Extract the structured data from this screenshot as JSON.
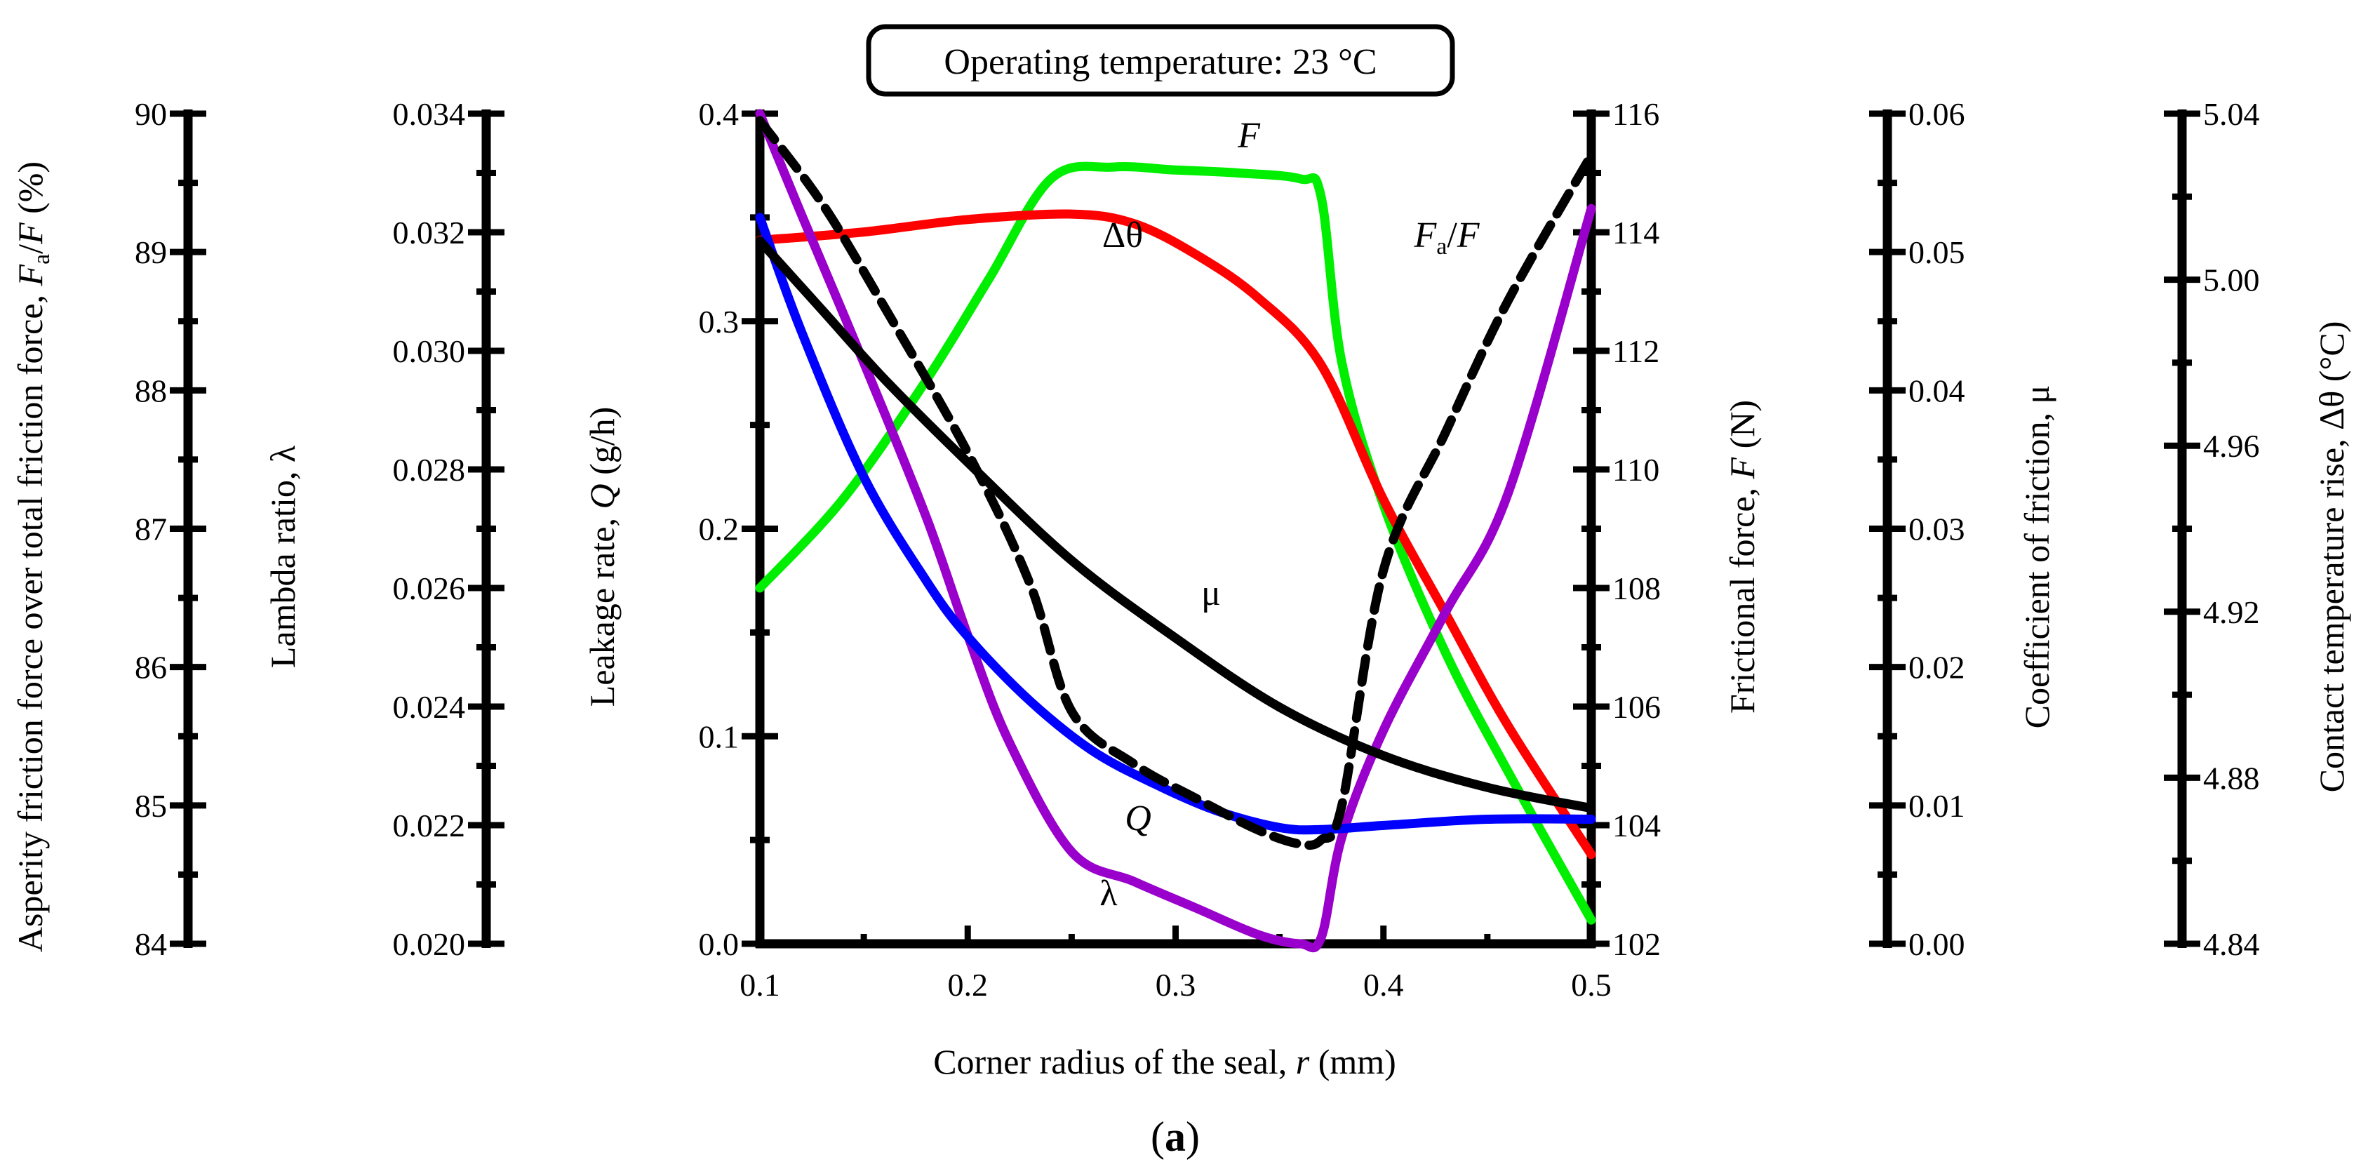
{
  "chart_data": {
    "type": "line",
    "title": "Operating temperature: 23 °C",
    "caption": {
      "open": "(",
      "letter": "a",
      "close": ")"
    },
    "xaxis": {
      "label": [
        "Corner radius of the seal, ",
        "r",
        " (mm)"
      ],
      "range": [
        0.1,
        0.5
      ],
      "ticks": [
        0.1,
        0.2,
        0.3,
        0.4,
        0.5
      ],
      "tick_labels": [
        "0.1",
        "0.2",
        "0.3",
        "0.4",
        "0.5"
      ]
    },
    "axes": {
      "asperity_ratio": {
        "label": [
          "Asperity friction force over total friction force, ",
          "F",
          "a",
          "/",
          "F",
          " (%)"
        ],
        "range": [
          84,
          90
        ],
        "ticks": [
          84,
          85,
          86,
          87,
          88,
          89,
          90
        ],
        "tick_labels": [
          "84",
          "85",
          "86",
          "87",
          "88",
          "89",
          "90"
        ]
      },
      "lambda": {
        "label": [
          "Lambda ratio, ",
          "λ"
        ],
        "range": [
          0.02,
          0.034
        ],
        "ticks": [
          0.02,
          0.022,
          0.024,
          0.026,
          0.028,
          0.03,
          0.032,
          0.034
        ],
        "tick_labels": [
          "0.020",
          "0.022",
          "0.024",
          "0.026",
          "0.028",
          "0.030",
          "0.032",
          "0.034"
        ]
      },
      "leakage": {
        "label": [
          "Leakage rate, ",
          "Q",
          " (g/h)"
        ],
        "range": [
          0,
          0.4
        ],
        "ticks": [
          0,
          0.1,
          0.2,
          0.3,
          0.4
        ],
        "tick_labels": [
          "0.0",
          "0.1",
          "0.2",
          "0.3",
          "0.4"
        ]
      },
      "friction_force": {
        "label": [
          "Frictional force, ",
          "F",
          " (N)"
        ],
        "range": [
          102,
          116
        ],
        "ticks": [
          102,
          104,
          106,
          108,
          110,
          112,
          114,
          116
        ],
        "tick_labels": [
          "102",
          "104",
          "106",
          "108",
          "110",
          "112",
          "114",
          "116"
        ]
      },
      "coefficient": {
        "label": [
          "Coefficient of friction, ",
          "μ"
        ],
        "range": [
          0,
          0.06
        ],
        "ticks": [
          0,
          0.01,
          0.02,
          0.03,
          0.04,
          0.05,
          0.06
        ],
        "tick_labels": [
          "0.00",
          "0.01",
          "0.02",
          "0.03",
          "0.04",
          "0.05",
          "0.06"
        ]
      },
      "temp_rise": {
        "label": [
          "Contact temperature rise, ",
          "Δθ",
          " (°C)"
        ],
        "range": [
          4.84,
          5.04
        ],
        "ticks": [
          4.84,
          4.88,
          4.92,
          4.96,
          5.0,
          5.04
        ],
        "tick_labels": [
          "4.84",
          "4.88",
          "4.92",
          "4.96",
          "5.00",
          "5.04"
        ]
      }
    },
    "series": [
      {
        "name": "Q",
        "label": "Q",
        "label_italic": true,
        "axis": "leakage",
        "color": "#0000ff",
        "x": [
          0.1,
          0.12,
          0.15,
          0.18,
          0.2,
          0.23,
          0.26,
          0.29,
          0.32,
          0.35,
          0.37,
          0.4,
          0.45,
          0.5
        ],
        "y": [
          0.35,
          0.295,
          0.225,
          0.175,
          0.148,
          0.117,
          0.093,
          0.077,
          0.064,
          0.056,
          0.055,
          0.057,
          0.06,
          0.06
        ]
      },
      {
        "name": "lambda",
        "label": "λ",
        "label_italic": false,
        "axis": "lambda",
        "color": "#9900cc",
        "x": [
          0.1,
          0.12,
          0.15,
          0.18,
          0.2,
          0.22,
          0.25,
          0.28,
          0.31,
          0.34,
          0.36,
          0.37,
          0.38,
          0.4,
          0.43,
          0.46,
          0.5
        ],
        "y": [
          0.034,
          0.0323,
          0.0298,
          0.0272,
          0.0252,
          0.0234,
          0.02155,
          0.02105,
          0.0206,
          0.02015,
          0.02,
          0.0201,
          0.0218,
          0.0236,
          0.0256,
          0.0276,
          0.0324
        ]
      },
      {
        "name": "mu",
        "label": "μ",
        "label_italic": false,
        "axis": "coefficient",
        "color": "#000000",
        "x": [
          0.1,
          0.13,
          0.16,
          0.2,
          0.25,
          0.3,
          0.35,
          0.4,
          0.45,
          0.5
        ],
        "y": [
          0.0508,
          0.0458,
          0.0408,
          0.0348,
          0.0277,
          0.0221,
          0.0171,
          0.0136,
          0.0113,
          0.0098
        ]
      },
      {
        "name": "delta_theta",
        "label": "Δθ",
        "label_italic": false,
        "axis": "temp_rise",
        "color": "#ff0000",
        "x": [
          0.1,
          0.15,
          0.2,
          0.25,
          0.28,
          0.31,
          0.34,
          0.37,
          0.4,
          0.43,
          0.46,
          0.5
        ],
        "y": [
          5.0095,
          5.0115,
          5.0145,
          5.0158,
          5.0135,
          5.006,
          4.9955,
          4.9795,
          4.947,
          4.9195,
          4.8925,
          4.8615
        ]
      },
      {
        "name": "F",
        "label": "F",
        "label_italic": true,
        "axis": "friction_force",
        "color": "#00ee00",
        "x": [
          0.1,
          0.14,
          0.18,
          0.21,
          0.24,
          0.27,
          0.3,
          0.33,
          0.36,
          0.37,
          0.38,
          0.4,
          0.43,
          0.46,
          0.5
        ],
        "y": [
          108,
          109.5,
          111.5,
          113.2,
          114.9,
          115.1,
          115.05,
          115.0,
          114.9,
          114.6,
          111.8,
          109.4,
          106.9,
          104.9,
          102.4
        ]
      },
      {
        "name": "Fa_over_F",
        "label": "Fa/F",
        "label_italic": true,
        "axis": "asperity_ratio",
        "color": "#000000",
        "dashed": true,
        "x": [
          0.1,
          0.13,
          0.16,
          0.2,
          0.23,
          0.25,
          0.28,
          0.31,
          0.34,
          0.36,
          0.37,
          0.38,
          0.4,
          0.43,
          0.46,
          0.5
        ],
        "y": [
          89.95,
          89.35,
          88.6,
          87.55,
          86.6,
          85.68,
          85.3,
          85.05,
          84.82,
          84.72,
          84.75,
          85.0,
          86.7,
          87.7,
          88.65,
          89.7
        ]
      }
    ]
  }
}
